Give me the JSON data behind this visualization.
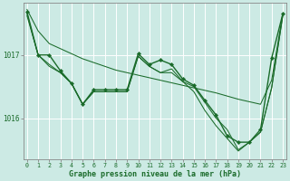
{
  "bg_color": "#cceae4",
  "grid_color": "#ffffff",
  "line_color": "#1a6b2a",
  "xlabel": "Graphe pression niveau de la mer (hPa)",
  "xticks": [
    0,
    1,
    2,
    3,
    4,
    5,
    6,
    7,
    8,
    9,
    10,
    11,
    12,
    13,
    14,
    15,
    16,
    17,
    18,
    19,
    20,
    21,
    22,
    23
  ],
  "yticks": [
    1016,
    1017
  ],
  "xlim": [
    -0.3,
    23.3
  ],
  "ylim": [
    1015.35,
    1017.82
  ],
  "series1_x": [
    0,
    1,
    2,
    3,
    4,
    5,
    6,
    7,
    8,
    9,
    10,
    11,
    12,
    13,
    14,
    15,
    16,
    17,
    18,
    19,
    20,
    21,
    22,
    23
  ],
  "series1_y": [
    1017.72,
    1017.38,
    1017.18,
    1017.1,
    1017.02,
    1016.94,
    1016.88,
    1016.82,
    1016.76,
    1016.72,
    1016.68,
    1016.64,
    1016.6,
    1016.56,
    1016.52,
    1016.48,
    1016.44,
    1016.4,
    1016.35,
    1016.3,
    1016.26,
    1016.22,
    1016.6,
    1017.65
  ],
  "series2_x": [
    0,
    1,
    2,
    3,
    4,
    5,
    6,
    7,
    8,
    9,
    10,
    11,
    12,
    13,
    14,
    15,
    16,
    17,
    18,
    19,
    20,
    21,
    22,
    23
  ],
  "series2_y": [
    1017.68,
    1017.0,
    1017.0,
    1016.75,
    1016.55,
    1016.22,
    1016.45,
    1016.45,
    1016.45,
    1016.45,
    1017.02,
    1016.85,
    1016.92,
    1016.85,
    1016.62,
    1016.52,
    1016.28,
    1016.05,
    1015.72,
    1015.62,
    1015.62,
    1015.82,
    1016.95,
    1017.65
  ],
  "series3_x": [
    0,
    1,
    2,
    3,
    4,
    5,
    6,
    7,
    8,
    9,
    10,
    11,
    12,
    13,
    14,
    15,
    16,
    17,
    18,
    19,
    20,
    21,
    22,
    23
  ],
  "series3_y": [
    1017.65,
    1017.0,
    1016.85,
    1016.72,
    1016.55,
    1016.22,
    1016.42,
    1016.42,
    1016.42,
    1016.42,
    1016.98,
    1016.82,
    1016.72,
    1016.78,
    1016.58,
    1016.5,
    1016.25,
    1016.0,
    1015.82,
    1015.5,
    1015.62,
    1015.78,
    1016.48,
    1017.62
  ],
  "series4_x": [
    0,
    1,
    2,
    3,
    4,
    5,
    6,
    7,
    8,
    9,
    10,
    11,
    12,
    13,
    14,
    15,
    16,
    17,
    18,
    19,
    20,
    21,
    22,
    23
  ],
  "series4_y": [
    1017.62,
    1017.0,
    1016.82,
    1016.72,
    1016.55,
    1016.22,
    1016.42,
    1016.42,
    1016.42,
    1016.42,
    1016.98,
    1016.82,
    1016.72,
    1016.72,
    1016.58,
    1016.42,
    1016.12,
    1015.88,
    1015.68,
    1015.48,
    1015.62,
    1015.78,
    1016.48,
    1017.62
  ]
}
